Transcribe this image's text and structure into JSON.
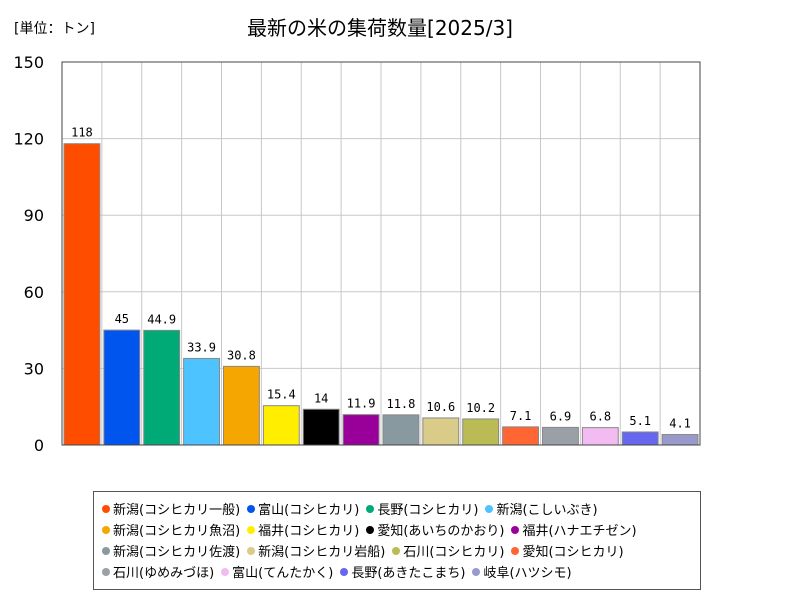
{
  "unit_label": "[単位：トン]",
  "chart_data": {
    "type": "bar",
    "title": "最新の米の集荷数量[2025/3]",
    "ylim": [
      0,
      150
    ],
    "yticks": [
      0,
      30,
      60,
      90,
      120,
      150
    ],
    "grid": true,
    "legend_position": "bottom",
    "categories": [
      "新潟(コシヒカリ一般)",
      "富山(コシヒカリ)",
      "長野(コシヒカリ)",
      "新潟(こしいぶき)",
      "新潟(コシヒカリ魚沼)",
      "福井(コシヒカリ)",
      "愛知(あいちのかおり)",
      "福井(ハナエチゼン)",
      "新潟(コシヒカリ佐渡)",
      "新潟(コシヒカリ岩船)",
      "石川(コシヒカリ)",
      "愛知(コシヒカリ)",
      "石川(ゆめみづほ)",
      "富山(てんたかく)",
      "長野(あきたこまち)",
      "岐阜(ハツシモ)"
    ],
    "values": [
      118,
      45,
      44.9,
      33.9,
      30.8,
      15.4,
      14,
      11.9,
      11.8,
      10.6,
      10.2,
      7.1,
      6.9,
      6.8,
      5.1,
      4.1
    ],
    "value_labels": [
      "118",
      "45",
      "44.9",
      "33.9",
      "30.8",
      "15.4",
      "14",
      "11.9",
      "11.8",
      "10.6",
      "10.2",
      "7.1",
      "6.9",
      "6.8",
      "5.1",
      "4.1"
    ],
    "colors": [
      "#ff4d00",
      "#0055ee",
      "#00aa77",
      "#4dc3ff",
      "#f5a600",
      "#ffee00",
      "#000000",
      "#990099",
      "#8899a0",
      "#d8cc88",
      "#bbbb55",
      "#ff6633",
      "#9aa0a6",
      "#f2bbf2",
      "#6666ee",
      "#9999cc"
    ]
  }
}
